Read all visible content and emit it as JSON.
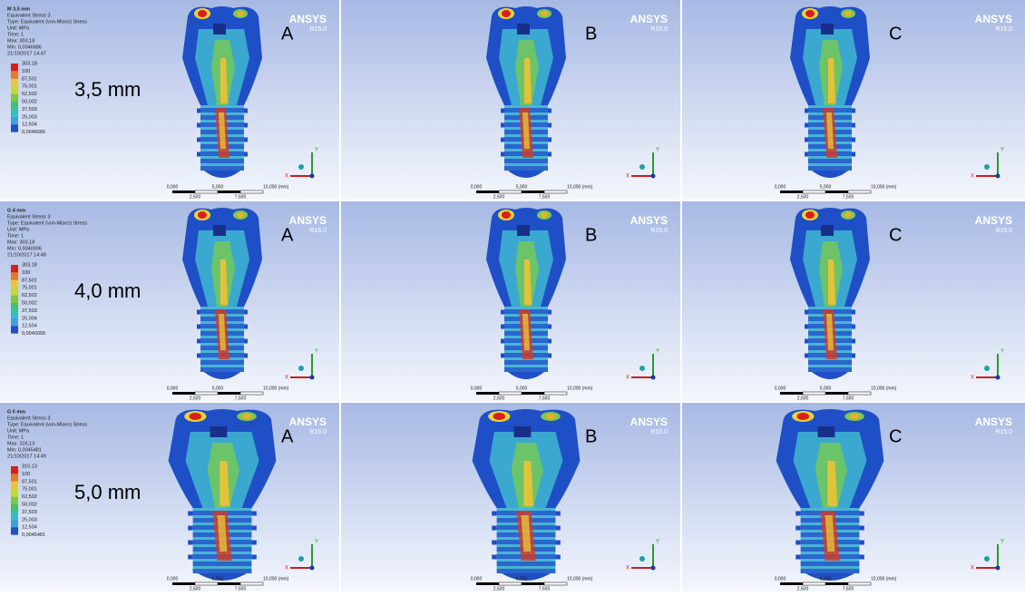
{
  "rows": [
    {
      "label": "3,5 mm",
      "panels": [
        "A",
        "B",
        "C"
      ],
      "legend": {
        "lines": [
          "M 3,5 mm",
          "Equivalent Stress 3",
          "Type: Equivalent (von-Mises) Stress",
          "Unit: MPa",
          "Time: 1",
          "Max: 303,18",
          "Min: 0,0046686",
          "21/10/2017 14:47"
        ],
        "scale": [
          "303,18",
          "100",
          "87,501",
          "75,001",
          "62,502",
          "50,002",
          "37,503",
          "25,003",
          "12,504",
          "0,0046686"
        ]
      }
    },
    {
      "label": "4,0 mm",
      "panels": [
        "A",
        "B",
        "C"
      ],
      "legend": {
        "lines": [
          "G 4 mm",
          "Equivalent Stress 3",
          "Type: Equivalent (von-Mises) Stress",
          "Unit: MPa",
          "Time: 1",
          "Max: 303,18",
          "Min: 0,0040006",
          "21/10/2017 14:48"
        ],
        "scale": [
          "303,18",
          "100",
          "87,501",
          "75,001",
          "62,502",
          "50,002",
          "37,503",
          "25,004",
          "12,504",
          "0,0040006"
        ]
      }
    },
    {
      "label": "5,0 mm",
      "panels": [
        "A",
        "B",
        "C"
      ],
      "legend": {
        "lines": [
          "G 5 mm",
          "Equivalent Stress 3",
          "Type: Equivalent (von-Mises) Stress",
          "Unit: MPa",
          "Time: 1",
          "Max: 316,13",
          "Min: 0,0045481",
          "21/10/2017 14:49"
        ],
        "scale": [
          "316,13",
          "100",
          "87,501",
          "75,001",
          "62,502",
          "50,002",
          "37,503",
          "25,003",
          "12,504",
          "0,0045481"
        ]
      }
    }
  ],
  "ansys": {
    "title": "ANSYS",
    "version": "R15.0"
  },
  "scale_bar": {
    "labels": [
      "0,000",
      "5,000",
      "10,000 (mm)",
      "2,500",
      "7,500"
    ]
  },
  "axes": [
    "Y",
    "X"
  ]
}
